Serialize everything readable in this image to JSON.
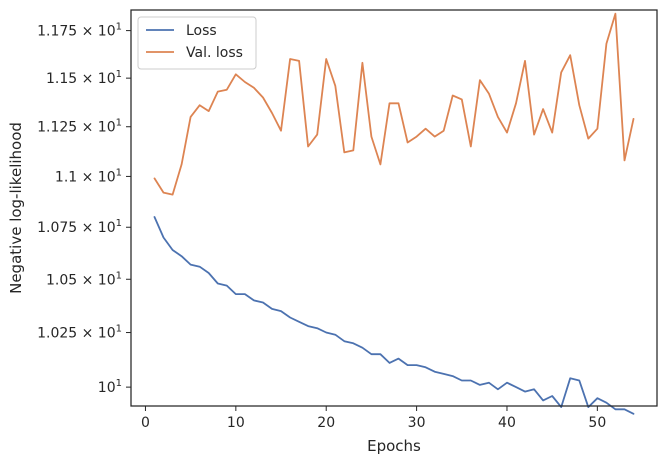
{
  "chart_data": {
    "type": "line",
    "xlabel": "Epochs",
    "ylabel": "Negative log-likelihood",
    "xlim": [
      -1.6,
      56.6
    ],
    "ylim": [
      9.915,
      11.86
    ],
    "y_scale": "log",
    "x_ticks": [
      {
        "value": 0,
        "label": "0"
      },
      {
        "value": 10,
        "label": "10"
      },
      {
        "value": 20,
        "label": "20"
      },
      {
        "value": 30,
        "label": "30"
      },
      {
        "value": 40,
        "label": "40"
      },
      {
        "value": 50,
        "label": "50"
      }
    ],
    "y_ticks": [
      {
        "value": 10.0,
        "base": "10",
        "exp": "1"
      },
      {
        "value": 10.25,
        "base": "1.025 × 10",
        "exp": "1"
      },
      {
        "value": 10.5,
        "base": "1.05 × 10",
        "exp": "1"
      },
      {
        "value": 10.75,
        "base": "1.075 × 10",
        "exp": "1"
      },
      {
        "value": 11.0,
        "base": "1.1 × 10",
        "exp": "1"
      },
      {
        "value": 11.25,
        "base": "1.125 × 10",
        "exp": "1"
      },
      {
        "value": 11.5,
        "base": "1.15 × 10",
        "exp": "1"
      },
      {
        "value": 11.75,
        "base": "1.175 × 10",
        "exp": "1"
      }
    ],
    "grid": false,
    "legend_position": "top-left",
    "x": [
      1,
      2,
      3,
      4,
      5,
      6,
      7,
      8,
      9,
      10,
      11,
      12,
      13,
      14,
      15,
      16,
      17,
      18,
      19,
      20,
      21,
      22,
      23,
      24,
      25,
      26,
      27,
      28,
      29,
      30,
      31,
      32,
      33,
      34,
      35,
      36,
      37,
      38,
      39,
      40,
      41,
      42,
      43,
      44,
      45,
      46,
      47,
      48,
      49,
      50,
      51,
      52,
      53,
      54
    ],
    "series": [
      {
        "name": "Loss",
        "color": "#4c72b0",
        "values": [
          10.8,
          10.7,
          10.64,
          10.61,
          10.57,
          10.56,
          10.53,
          10.48,
          10.47,
          10.43,
          10.43,
          10.4,
          10.39,
          10.36,
          10.35,
          10.32,
          10.3,
          10.28,
          10.27,
          10.25,
          10.24,
          10.21,
          10.2,
          10.18,
          10.15,
          10.15,
          10.11,
          10.13,
          10.1,
          10.1,
          10.09,
          10.07,
          10.06,
          10.05,
          10.03,
          10.03,
          10.01,
          10.02,
          9.99,
          10.02,
          10.0,
          9.98,
          9.99,
          9.94,
          9.96,
          9.91,
          10.04,
          10.03,
          9.91,
          9.95,
          9.93,
          9.9,
          9.9,
          9.88
        ]
      },
      {
        "name": "Val. loss",
        "color": "#dd8452",
        "values": [
          10.99,
          10.92,
          10.91,
          11.06,
          11.3,
          11.36,
          11.33,
          11.43,
          11.44,
          11.52,
          11.48,
          11.45,
          11.4,
          11.32,
          11.23,
          11.6,
          11.59,
          11.15,
          11.21,
          11.6,
          11.46,
          11.12,
          11.13,
          11.58,
          11.2,
          11.06,
          11.37,
          11.37,
          11.17,
          11.2,
          11.24,
          11.2,
          11.23,
          11.41,
          11.39,
          11.15,
          11.49,
          11.42,
          11.3,
          11.22,
          11.37,
          11.59,
          11.21,
          11.34,
          11.22,
          11.53,
          11.62,
          11.36,
          11.19,
          11.24,
          11.68,
          11.84,
          11.08,
          11.29
        ]
      }
    ]
  }
}
